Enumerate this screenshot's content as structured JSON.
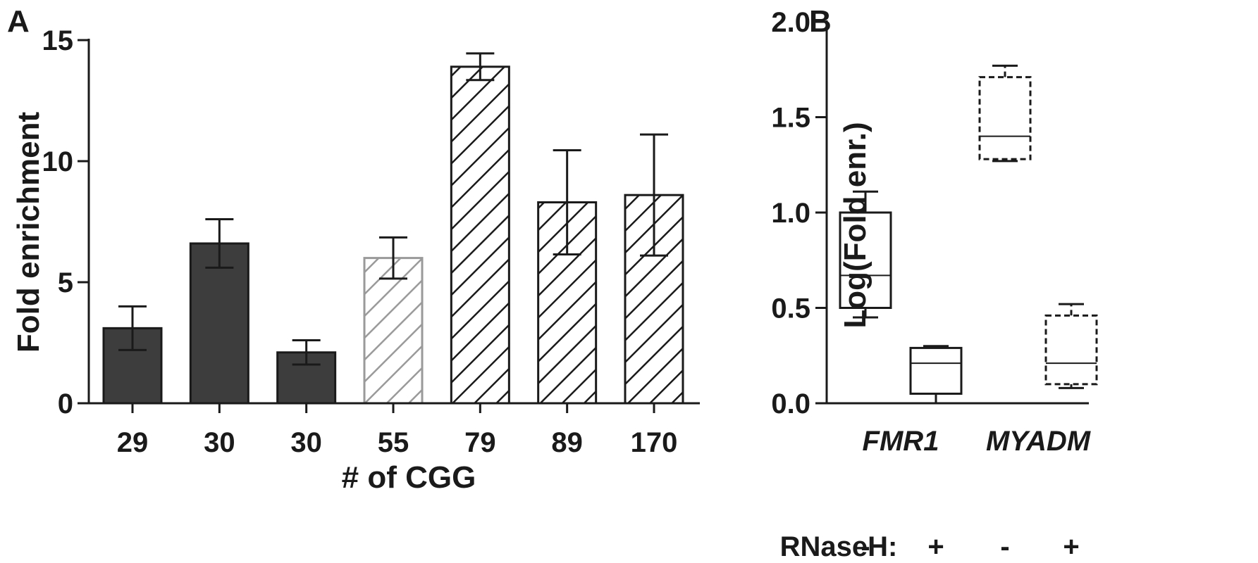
{
  "colors": {
    "solid_bar": "#3d3d3d",
    "light_hatch": "#9a9a9a",
    "dark_hatch": "#1a1a1a",
    "axis": "#1a1a1a"
  },
  "chart_data": [
    {
      "panel": "A",
      "type": "bar",
      "xlabel": "# of CGG",
      "ylabel": "Fold enrichment",
      "ylim": [
        0,
        15
      ],
      "yticks": [
        "0",
        "5",
        "10",
        "15"
      ],
      "categories": [
        "29",
        "30",
        "30",
        "55",
        "79",
        "89",
        "170"
      ],
      "values": [
        3.1,
        6.6,
        2.1,
        6.0,
        13.9,
        8.3,
        8.6
      ],
      "errors": [
        0.9,
        1.0,
        0.5,
        0.85,
        0.55,
        2.15,
        2.5
      ],
      "fill_styles": [
        "solid",
        "solid",
        "solid",
        "light-hatch",
        "dark-hatch",
        "dark-hatch",
        "dark-hatch"
      ],
      "grid": false
    },
    {
      "panel": "B",
      "type": "box",
      "ylabel": "Log(Fold enr.)",
      "ylim": [
        0,
        2.0
      ],
      "yticks": [
        "0.0",
        "0.5",
        "1.0",
        "1.5",
        "2.0"
      ],
      "groups": [
        "FMR1",
        "MYADM"
      ],
      "condition_label": "RNaseH:",
      "conditions": [
        "-",
        "+",
        "-",
        "+"
      ],
      "boxes": [
        {
          "group": "FMR1",
          "condition": "-",
          "min": 0.45,
          "q1": 0.5,
          "median": 0.67,
          "q3": 1.0,
          "max": 1.11,
          "line": "solid"
        },
        {
          "group": "FMR1",
          "condition": "+",
          "min": 0.0,
          "q1": 0.05,
          "median": 0.21,
          "q3": 0.29,
          "max": 0.3,
          "line": "solid"
        },
        {
          "group": "MYADM",
          "condition": "-",
          "min": 1.27,
          "q1": 1.28,
          "median": 1.4,
          "q3": 1.71,
          "max": 1.77,
          "line": "dashed"
        },
        {
          "group": "MYADM",
          "condition": "+",
          "min": 0.08,
          "q1": 0.1,
          "median": 0.21,
          "q3": 0.46,
          "max": 0.52,
          "line": "dashed"
        }
      ],
      "grid": false
    }
  ]
}
